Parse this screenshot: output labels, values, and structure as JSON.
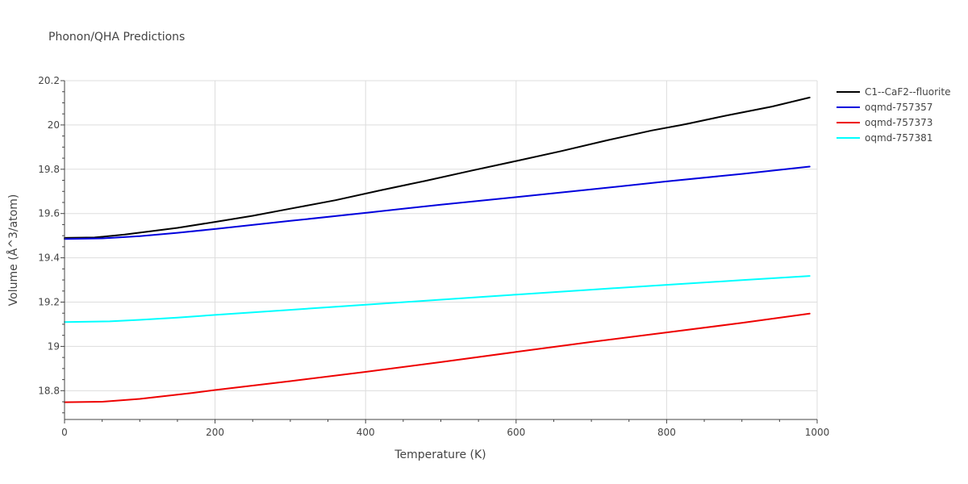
{
  "chart_data": {
    "type": "line",
    "title": "Phonon/QHA Predictions",
    "xlabel": "Temperature (K)",
    "ylabel": "Volume (Å^3/atom)",
    "xlim": [
      0,
      1000
    ],
    "ylim": [
      18.67,
      20.2
    ],
    "xticks": [
      0,
      200,
      400,
      600,
      800,
      1000
    ],
    "xtick_labels": [
      "0",
      "200",
      "400",
      "600",
      "800",
      "1000"
    ],
    "yticks": [
      18.8,
      19.0,
      19.2,
      19.4,
      19.6,
      19.8,
      20.0,
      20.2
    ],
    "ytick_labels": [
      "18.8",
      "19",
      "19.2",
      "19.4",
      "19.6",
      "19.8",
      "20",
      "20.2"
    ],
    "grid": true,
    "legend_position": "top-right",
    "series": [
      {
        "name": "C1--CaF2--fluorite",
        "color": "#000000",
        "x": [
          0,
          40,
          80,
          150,
          200,
          250,
          300,
          360,
          420,
          480,
          540,
          600,
          660,
          720,
          780,
          820,
          830,
          880,
          940,
          990
        ],
        "y": [
          19.49,
          19.492,
          19.505,
          19.535,
          19.562,
          19.59,
          19.622,
          19.66,
          19.705,
          19.748,
          19.793,
          19.837,
          19.882,
          19.93,
          19.975,
          20.0,
          20.007,
          20.043,
          20.083,
          20.124
        ]
      },
      {
        "name": "oqmd-757357",
        "color": "#0000dd",
        "x": [
          0,
          50,
          100,
          150,
          200,
          300,
          400,
          500,
          600,
          700,
          800,
          900,
          990
        ],
        "y": [
          19.485,
          19.488,
          19.498,
          19.513,
          19.53,
          19.567,
          19.603,
          19.64,
          19.674,
          19.709,
          19.745,
          19.779,
          19.812
        ]
      },
      {
        "name": "oqmd-757373",
        "color": "#ee0000",
        "x": [
          0,
          50,
          100,
          170,
          200,
          300,
          400,
          500,
          600,
          700,
          800,
          900,
          990
        ],
        "y": [
          18.748,
          18.75,
          18.763,
          18.79,
          18.803,
          18.843,
          18.885,
          18.929,
          18.975,
          19.02,
          19.063,
          19.106,
          19.148
        ]
      },
      {
        "name": "oqmd-757381",
        "color": "#00ffff",
        "x": [
          0,
          60,
          100,
          150,
          200,
          300,
          400,
          500,
          600,
          700,
          800,
          900,
          990
        ],
        "y": [
          19.11,
          19.113,
          19.12,
          19.13,
          19.142,
          19.165,
          19.188,
          19.211,
          19.234,
          19.256,
          19.278,
          19.299,
          19.318
        ]
      }
    ]
  }
}
